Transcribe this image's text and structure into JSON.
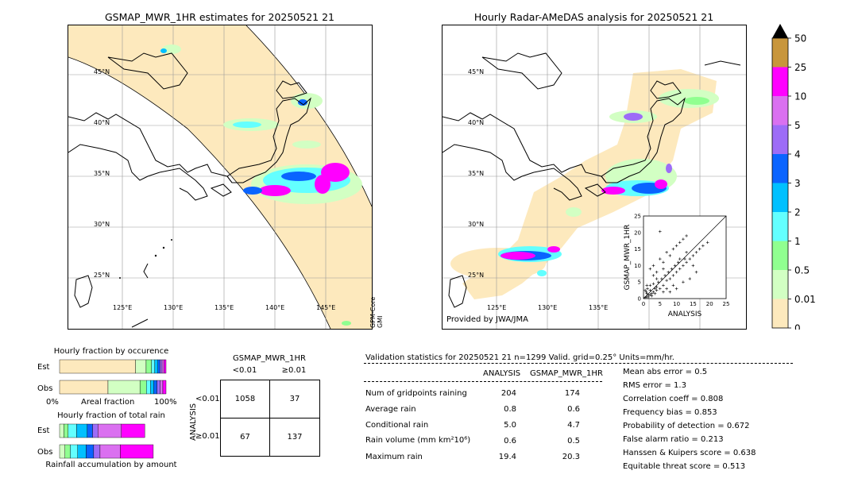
{
  "left_map": {
    "title": "GSMAP_MWR_1HR estimates for 20250521 21",
    "lat_labels": [
      "45°N",
      "40°N",
      "35°N",
      "30°N",
      "25°N"
    ],
    "lon_labels": [
      "125°E",
      "130°E",
      "135°E",
      "140°E",
      "145°E"
    ],
    "sensor_label": "GPM-Core GMI"
  },
  "right_map": {
    "title": "Hourly Radar-AMeDAS analysis for 20250521 21",
    "lat_labels": [
      "45°N",
      "40°N",
      "35°N",
      "30°N",
      "25°N"
    ],
    "lon_labels": [
      "125°E",
      "130°E",
      "135°E"
    ],
    "credit": "Provided by JWA/JMA"
  },
  "colorbar": {
    "ticks": [
      "50",
      "25",
      "10",
      "5",
      "4",
      "3",
      "2",
      "1",
      "0.5",
      "0.01",
      "0"
    ],
    "colors": [
      "#c8963c",
      "#ff00ff",
      "#da70f0",
      "#9d6cf7",
      "#0a64ff",
      "#00c0ff",
      "#63ffff",
      "#90ff90",
      "#d2ffc3",
      "#fde9bd"
    ]
  },
  "chart_data": [
    {
      "type": "scatter",
      "title": "",
      "xlabel": "ANALYSIS",
      "ylabel": "GSMAP_MWR_1HR",
      "xlim": [
        0,
        25
      ],
      "ylim": [
        0,
        25
      ],
      "x_ticks": [
        "0",
        "5",
        "10",
        "15",
        "20",
        "25"
      ],
      "y_ticks": [
        "0",
        "5",
        "10",
        "15",
        "20",
        "25"
      ],
      "points": [
        [
          0.5,
          0.3
        ],
        [
          1,
          0.5
        ],
        [
          1.5,
          1
        ],
        [
          2,
          1.2
        ],
        [
          0.8,
          2
        ],
        [
          2.5,
          1.5
        ],
        [
          3,
          2
        ],
        [
          1.2,
          3
        ],
        [
          2,
          4
        ],
        [
          3.5,
          3
        ],
        [
          4,
          2.5
        ],
        [
          4.5,
          5
        ],
        [
          5,
          3
        ],
        [
          5.5,
          6
        ],
        [
          6,
          4
        ],
        [
          6.5,
          7
        ],
        [
          7,
          5.5
        ],
        [
          7.5,
          8
        ],
        [
          8,
          6
        ],
        [
          8.5,
          9
        ],
        [
          9,
          7
        ],
        [
          9.5,
          10
        ],
        [
          10,
          8
        ],
        [
          10.5,
          11
        ],
        [
          11,
          9
        ],
        [
          12,
          10
        ],
        [
          12.5,
          12
        ],
        [
          13,
          11
        ],
        [
          14,
          12
        ],
        [
          15,
          13
        ],
        [
          16,
          14
        ],
        [
          17,
          15
        ],
        [
          18,
          16
        ],
        [
          19.4,
          17
        ],
        [
          2,
          9
        ],
        [
          3,
          10
        ],
        [
          4,
          8
        ],
        [
          5,
          12
        ],
        [
          6,
          11
        ],
        [
          7,
          14
        ],
        [
          8,
          13
        ],
        [
          9,
          15
        ],
        [
          10,
          16
        ],
        [
          11,
          17
        ],
        [
          12,
          18
        ],
        [
          13,
          19
        ],
        [
          5,
          20.3
        ],
        [
          3,
          7
        ],
        [
          4,
          6
        ],
        [
          6,
          9
        ],
        [
          1,
          4
        ],
        [
          0.5,
          2.5
        ],
        [
          1,
          1.5
        ],
        [
          1.5,
          0.5
        ],
        [
          2,
          2.5
        ],
        [
          2.5,
          0.8
        ],
        [
          3,
          4.5
        ],
        [
          3.5,
          1.5
        ],
        [
          4,
          3.5
        ],
        [
          6,
          2
        ],
        [
          7,
          3
        ],
        [
          8,
          2
        ],
        [
          9,
          4
        ],
        [
          10,
          3
        ],
        [
          12,
          5
        ],
        [
          14,
          6
        ],
        [
          16,
          8
        ],
        [
          15,
          10
        ],
        [
          13,
          14
        ],
        [
          11,
          12
        ]
      ]
    },
    {
      "type": "bar",
      "title": "Hourly fraction by occurence",
      "rows": [
        "Est",
        "Obs"
      ],
      "xlabel": "Areal fraction",
      "x_tick_labels": [
        "0%",
        "100%"
      ],
      "series": [
        {
          "color": "#fde9bd",
          "values": [
            0.713,
            0.455
          ]
        },
        {
          "color": "#d2ffc3",
          "values": [
            0.1,
            0.3
          ]
        },
        {
          "color": "#90ff90",
          "values": [
            0.05,
            0.06
          ]
        },
        {
          "color": "#63ffff",
          "values": [
            0.03,
            0.04
          ]
        },
        {
          "color": "#00c0ff",
          "values": [
            0.03,
            0.03
          ]
        },
        {
          "color": "#0a64ff",
          "values": [
            0.02,
            0.03
          ]
        },
        {
          "color": "#9d6cf7",
          "values": [
            0.02,
            0.03
          ]
        },
        {
          "color": "#da70f0",
          "values": [
            0.017,
            0.025
          ]
        },
        {
          "color": "#ff00ff",
          "values": [
            0.02,
            0.03
          ]
        }
      ]
    },
    {
      "type": "bar",
      "title": "Hourly fraction of total rain",
      "rows": [
        "Est",
        "Obs"
      ],
      "xlabel": "Rainfall accumulation by amount",
      "series": [
        {
          "color": "#d2ffc3",
          "values": [
            0.04,
            0.05
          ]
        },
        {
          "color": "#90ff90",
          "values": [
            0.04,
            0.05
          ]
        },
        {
          "color": "#63ffff",
          "values": [
            0.08,
            0.07
          ]
        },
        {
          "color": "#00c0ff",
          "values": [
            0.1,
            0.08
          ]
        },
        {
          "color": "#0a64ff",
          "values": [
            0.05,
            0.07
          ]
        },
        {
          "color": "#9d6cf7",
          "values": [
            0.05,
            0.06
          ]
        },
        {
          "color": "#da70f0",
          "values": [
            0.22,
            0.19
          ]
        },
        {
          "color": "#ff00ff",
          "values": [
            0.22,
            0.31
          ]
        }
      ]
    },
    {
      "type": "table",
      "title": "GSMAP_MWR_1HR",
      "col_headers": [
        "<0.01",
        "≥0.01"
      ],
      "row_title": "ANALYSIS",
      "row_headers": [
        "<0.01",
        "≥0.01"
      ],
      "cells": [
        [
          "1058",
          "37"
        ],
        [
          "67",
          "137"
        ]
      ]
    }
  ],
  "validation": {
    "header": "Validation statistics for 20250521 21  n=1299 Valid. grid=0.25° Units=mm/hr.",
    "col_analysis": "ANALYSIS",
    "col_gsmap": "GSMAP_MWR_1HR",
    "rows": [
      {
        "label": "Num of gridpoints raining",
        "a": "204",
        "g": "174"
      },
      {
        "label": "Average rain",
        "a": "0.8",
        "g": "0.6"
      },
      {
        "label": "Conditional rain",
        "a": "5.0",
        "g": "4.7"
      },
      {
        "label": "Rain volume (mm km²10⁶)",
        "a": "0.6",
        "g": "0.5"
      },
      {
        "label": "Maximum rain",
        "a": "19.4",
        "g": "20.3"
      }
    ],
    "scores": [
      "Mean abs error =    0.5",
      "RMS error =    1.3",
      "Correlation coeff =  0.808",
      "Frequency bias =  0.853",
      "Probability of detection =  0.672",
      "False alarm ratio =  0.213",
      "Hanssen & Kuipers score =  0.638",
      "Equitable threat score =  0.513"
    ]
  }
}
